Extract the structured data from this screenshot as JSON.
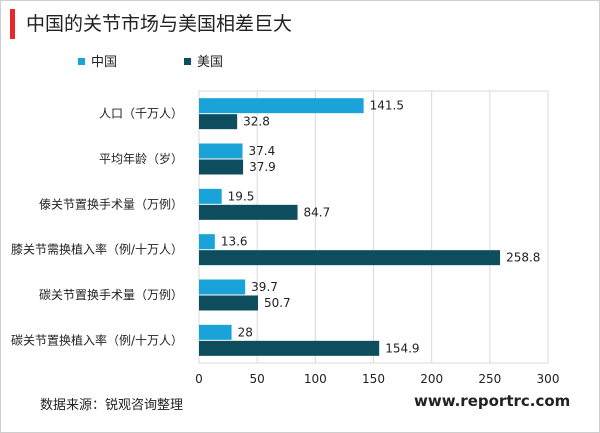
{
  "title": "中国的关节市场与美国相差巨大",
  "source": "数据来源：锐观咨询整理",
  "website": "www.reportrc.com",
  "colors": {
    "china": "#1aa3d9",
    "usa": "#0e4d5e",
    "accent": "#e8262b"
  },
  "chart_data": {
    "type": "bar",
    "orientation": "horizontal",
    "categories": [
      "人口（千万人）",
      "平均年龄（岁）",
      "傣关节置换手术量（万例）",
      "膝关节需换植入率（例/十万人）",
      "碳关节置换手术量（万例）",
      "碳关节置换植入率（例/十万人）"
    ],
    "series": [
      {
        "name": "中国",
        "values": [
          141.5,
          37.4,
          19.5,
          13.6,
          39.7,
          28
        ],
        "value_labels": [
          "141.5",
          "37.4",
          "19.5",
          "13.6",
          "39.7",
          "28"
        ]
      },
      {
        "name": "美国",
        "values": [
          32.8,
          37.9,
          84.7,
          258.8,
          50.7,
          154.9
        ],
        "value_labels": [
          "32.8",
          "37.9",
          "84.7",
          "258.8",
          "50.7",
          "154.9"
        ]
      }
    ],
    "xlim": [
      0,
      300
    ],
    "xticks": [
      "0",
      "50",
      "100",
      "150",
      "200",
      "250",
      "300"
    ],
    "grid": true,
    "legend_position": "top-left"
  }
}
